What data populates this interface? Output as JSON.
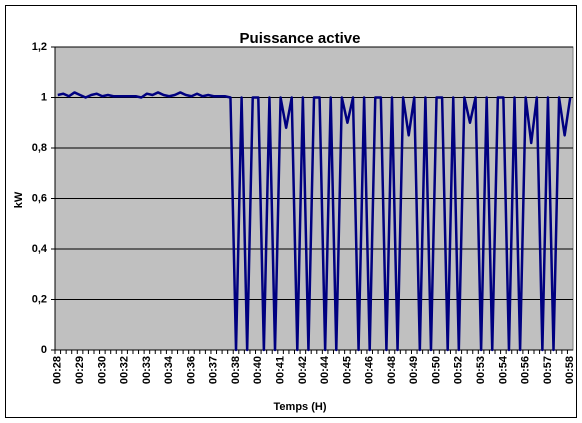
{
  "chart_data": {
    "type": "line",
    "title": "Puissance active",
    "x_label": "Temps (H)",
    "y_label": "kW",
    "categories": [
      "00:28",
      null,
      null,
      null,
      "00:29",
      null,
      null,
      null,
      "00:30",
      null,
      null,
      null,
      "00:32",
      null,
      null,
      null,
      "00:33",
      null,
      null,
      null,
      "00:34",
      null,
      null,
      null,
      "00:36",
      null,
      null,
      null,
      "00:37",
      null,
      null,
      null,
      "00:38",
      null,
      null,
      null,
      "00:40",
      null,
      null,
      null,
      "00:41",
      null,
      null,
      null,
      "00:42",
      null,
      null,
      null,
      "00:44",
      null,
      null,
      null,
      "00:45",
      null,
      null,
      null,
      "00:46",
      null,
      null,
      null,
      "00:48",
      null,
      null,
      null,
      "00:49",
      null,
      null,
      null,
      "00:50",
      null,
      null,
      null,
      "00:52",
      null,
      null,
      null,
      "00:53",
      null,
      null,
      null,
      "00:54",
      null,
      null,
      null,
      "00:56",
      null,
      null,
      null,
      "00:57",
      null,
      null,
      null,
      "00:58"
    ],
    "values": [
      1.01,
      1.015,
      1.005,
      1.02,
      1.01,
      1.0,
      1.01,
      1.015,
      1.005,
      1.01,
      1.005,
      1.005,
      1.005,
      1.005,
      1.005,
      1.0,
      1.015,
      1.01,
      1.02,
      1.01,
      1.005,
      1.01,
      1.02,
      1.01,
      1.005,
      1.015,
      1.005,
      1.01,
      1.005,
      1.005,
      1.005,
      1,
      0,
      1,
      0,
      1,
      1,
      0,
      1,
      0,
      1,
      0.88,
      1,
      0,
      1,
      0,
      1,
      1,
      0,
      1,
      0,
      1,
      0.9,
      1,
      0,
      1,
      0,
      1,
      1,
      0,
      1,
      0,
      1,
      0.85,
      1,
      0,
      1,
      0,
      1,
      1,
      0,
      1,
      0,
      1,
      0.9,
      1,
      0,
      1,
      0,
      1,
      1,
      0,
      1,
      0,
      1,
      0.82,
      1,
      0,
      1,
      0,
      1,
      0.85,
      1
    ],
    "color": "#000080",
    "plot_background": "#c0c0c0",
    "grid": true,
    "ylim": [
      0,
      1.2
    ],
    "yticks": [
      0,
      {
        "value": 0.2,
        "label": "0,2"
      },
      {
        "value": 0.4,
        "label": "0,4"
      },
      {
        "value": 0.6,
        "label": "0,6"
      },
      {
        "value": 0.8,
        "label": "0,8"
      },
      1,
      {
        "value": 1.2,
        "label": "1,2"
      }
    ]
  }
}
